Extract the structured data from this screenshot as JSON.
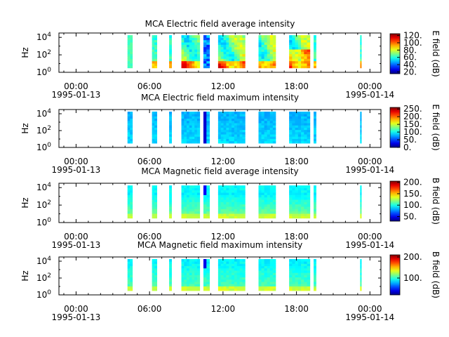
{
  "chart_data": [
    {
      "type": "heatmap",
      "title": "MCA  Electric field average intensity",
      "ylabel": "Hz",
      "y_scale": "log",
      "y_ticks": [
        {
          "base": "10",
          "exp": "0"
        },
        {
          "base": "10",
          "exp": "2"
        },
        {
          "base": "10",
          "exp": "4"
        }
      ],
      "x_ticks": [
        "00:00",
        "06:00",
        "12:00",
        "18:00",
        "00:00"
      ],
      "x_dates": [
        "1995-01-13",
        "1995-01-14"
      ],
      "colorbar_label": "E field (dB)",
      "colorbar_ticks": [
        "120.",
        "100.",
        "80.",
        "60.",
        "40.",
        "20."
      ],
      "colorbar_range": [
        15,
        125
      ],
      "colorbar_tick_values": [
        120,
        100,
        80,
        60,
        40,
        20
      ],
      "style": "avg-e"
    },
    {
      "type": "heatmap",
      "title": "MCA  Electric field maximum intensity",
      "ylabel": "Hz",
      "y_scale": "log",
      "y_ticks": [
        {
          "base": "10",
          "exp": "0"
        },
        {
          "base": "10",
          "exp": "2"
        },
        {
          "base": "10",
          "exp": "4"
        }
      ],
      "x_ticks": [
        "00:00",
        "06:00",
        "12:00",
        "18:00",
        "00:00"
      ],
      "x_dates": [
        "1995-01-13",
        "1995-01-14"
      ],
      "colorbar_label": "E field (dB)",
      "colorbar_ticks": [
        "250.",
        "200.",
        "150.",
        "100.",
        "50.",
        "0."
      ],
      "colorbar_range": [
        0,
        260
      ],
      "colorbar_tick_values": [
        250,
        200,
        150,
        100,
        50,
        0
      ],
      "style": "max-e"
    },
    {
      "type": "heatmap",
      "title": "MCA  Magnetic field average intensity",
      "ylabel": "Hz",
      "y_scale": "log",
      "y_ticks": [
        {
          "base": "10",
          "exp": "0"
        },
        {
          "base": "10",
          "exp": "2"
        },
        {
          "base": "10",
          "exp": "4"
        }
      ],
      "x_ticks": [
        "00:00",
        "06:00",
        "12:00",
        "18:00",
        "00:00"
      ],
      "x_dates": [
        "1995-01-13",
        "1995-01-14"
      ],
      "colorbar_label": "B field (dB)",
      "colorbar_ticks": [
        "200.",
        "150.",
        "100.",
        "50."
      ],
      "colorbar_range": [
        30,
        205
      ],
      "colorbar_tick_values": [
        200,
        150,
        100,
        50
      ],
      "style": "avg-b"
    },
    {
      "type": "heatmap",
      "title": "MCA  Magnetic field maximum intensity",
      "ylabel": "Hz",
      "y_scale": "log",
      "y_ticks": [
        {
          "base": "10",
          "exp": "0"
        },
        {
          "base": "10",
          "exp": "2"
        },
        {
          "base": "10",
          "exp": "4"
        }
      ],
      "x_ticks": [
        "00:00",
        "06:00",
        "12:00",
        "18:00",
        "00:00"
      ],
      "x_dates": [
        "1995-01-13",
        "1995-01-14"
      ],
      "colorbar_label": "B field (dB)",
      "colorbar_ticks": [
        "200.",
        "100."
      ],
      "colorbar_range": [
        20,
        210
      ],
      "colorbar_tick_values": [
        200,
        100
      ],
      "style": "max-b"
    }
  ],
  "data_intervals_hours": [
    [
      4.2,
      4.6
    ],
    [
      6.2,
      6.6
    ],
    [
      7.6,
      7.8
    ],
    [
      8.6,
      10.1
    ],
    [
      10.4,
      10.9
    ],
    [
      11.6,
      13.8
    ],
    [
      14.9,
      16.3
    ],
    [
      17.4,
      19.1
    ],
    [
      19.4,
      19.6
    ],
    [
      23.2,
      23.3
    ]
  ],
  "x_range_hours": [
    -1.4,
    24.9
  ],
  "y_range_log10": [
    0,
    4.5
  ]
}
